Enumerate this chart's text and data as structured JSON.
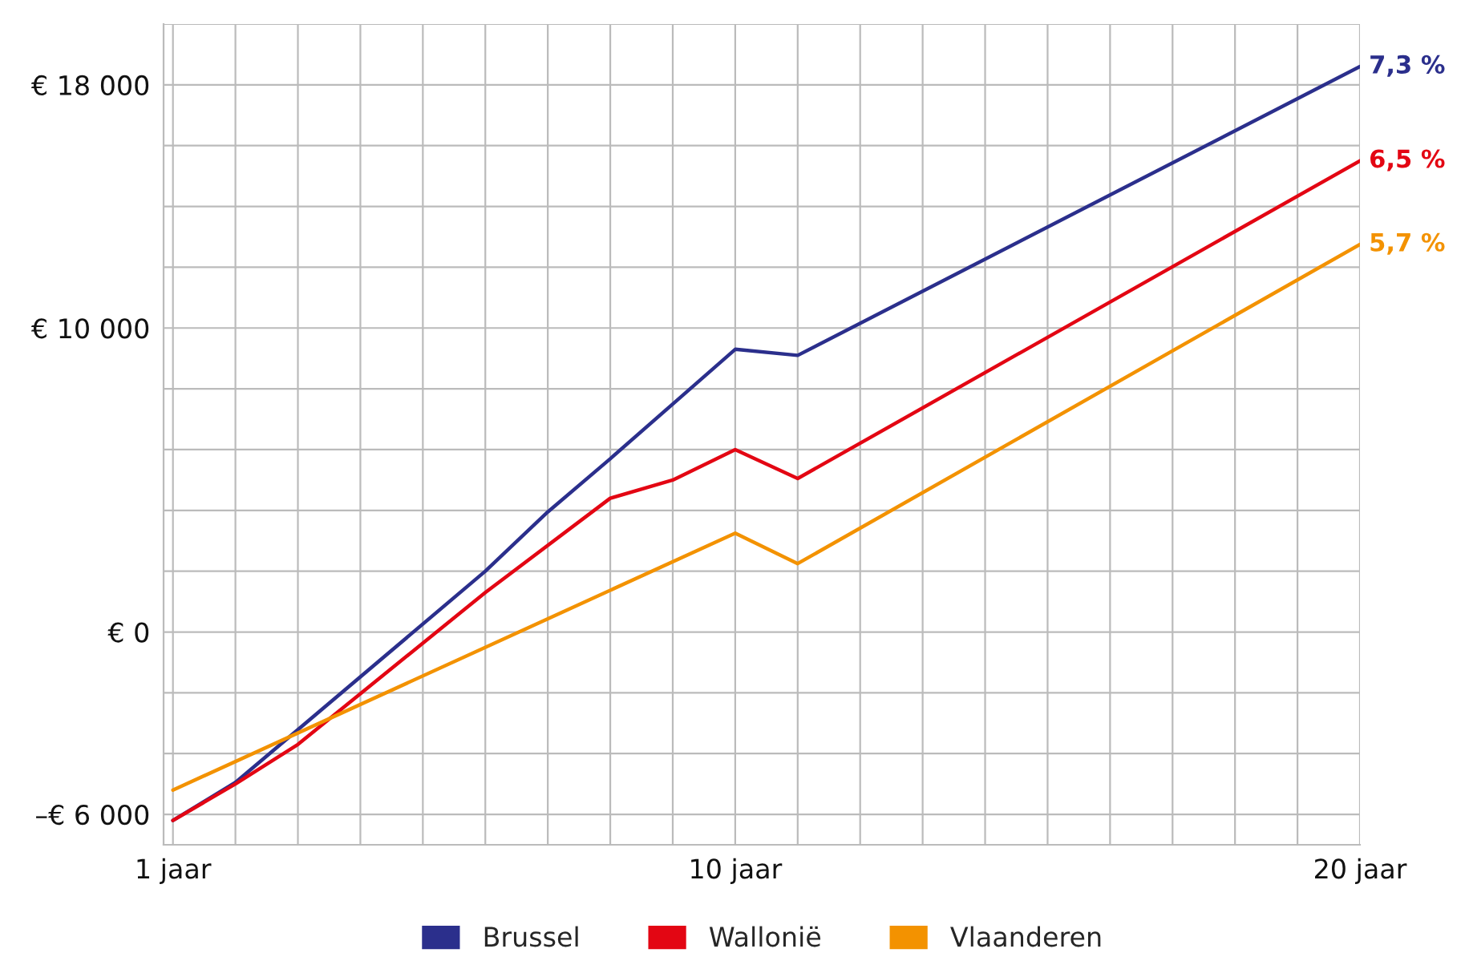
{
  "chart_data": {
    "type": "line",
    "series": [
      {
        "name": "Brussel",
        "color": "#2b2f8c",
        "x": [
          1,
          2,
          6,
          7,
          8,
          9,
          10,
          11,
          20
        ],
        "values": [
          -6200,
          -4950,
          2000,
          3950,
          5700,
          7500,
          9300,
          9100,
          18600
        ]
      },
      {
        "name": "Wallonië",
        "color": "#e30613",
        "x": [
          1,
          2,
          3,
          6,
          8,
          9,
          10,
          11,
          20
        ],
        "values": [
          -6200,
          -5000,
          -3700,
          1300,
          4400,
          5000,
          6000,
          5050,
          15500
        ]
      },
      {
        "name": "Vlaanderen",
        "color": "#f39200",
        "x": [
          1,
          10,
          11,
          20
        ],
        "values": [
          -5200,
          3250,
          2250,
          12750
        ]
      }
    ],
    "xlim": [
      0.85,
      20
    ],
    "xticks": [
      {
        "value": 1,
        "label": "1 jaar"
      },
      {
        "value": 2,
        "label": null
      },
      {
        "value": 3,
        "label": null
      },
      {
        "value": 4,
        "label": null
      },
      {
        "value": 5,
        "label": null
      },
      {
        "value": 6,
        "label": null
      },
      {
        "value": 7,
        "label": null
      },
      {
        "value": 8,
        "label": null
      },
      {
        "value": 9,
        "label": null
      },
      {
        "value": 10,
        "label": "10 jaar"
      },
      {
        "value": 11,
        "label": null
      },
      {
        "value": 12,
        "label": null
      },
      {
        "value": 13,
        "label": null
      },
      {
        "value": 14,
        "label": null
      },
      {
        "value": 15,
        "label": null
      },
      {
        "value": 16,
        "label": null
      },
      {
        "value": 17,
        "label": null
      },
      {
        "value": 18,
        "label": null
      },
      {
        "value": 19,
        "label": null
      },
      {
        "value": 20,
        "label": "20 jaar"
      }
    ],
    "ylim": [
      -7000,
      20000
    ],
    "yticks": [
      {
        "value": -6000,
        "label": "–€ 6 000"
      },
      {
        "value": -4000,
        "label": null
      },
      {
        "value": -2000,
        "label": null
      },
      {
        "value": 0,
        "label": "€ 0"
      },
      {
        "value": 2000,
        "label": null
      },
      {
        "value": 4000,
        "label": null
      },
      {
        "value": 6000,
        "label": null
      },
      {
        "value": 8000,
        "label": null
      },
      {
        "value": 10000,
        "label": "€ 10 000"
      },
      {
        "value": 12000,
        "label": null
      },
      {
        "value": 14000,
        "label": null
      },
      {
        "value": 16000,
        "label": null
      },
      {
        "value": 18000,
        "label": "€ 18 000"
      },
      {
        "value": 20000,
        "label": null
      }
    ],
    "grid": true,
    "annotations": [
      "7,3 %",
      "6,5 %",
      "5,7 %"
    ],
    "legend": "bottom",
    "marker": "none",
    "line_style": "solid"
  }
}
